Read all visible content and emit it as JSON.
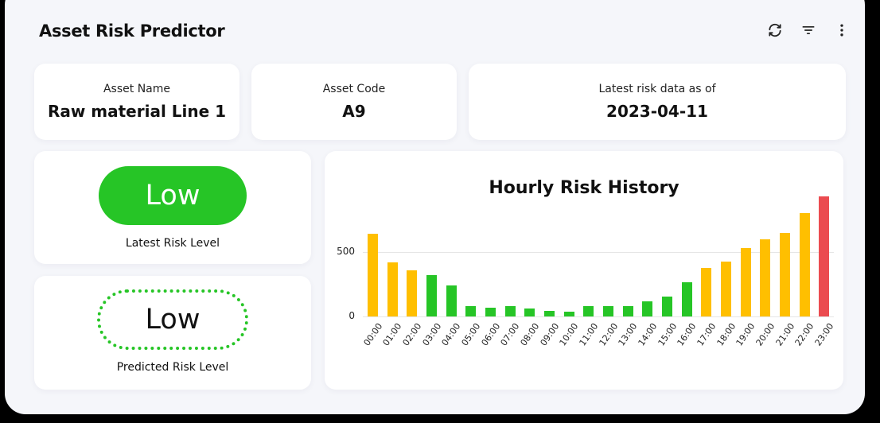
{
  "header": {
    "title": "Asset Risk Predictor",
    "actions": [
      {
        "name": "refresh-icon",
        "label": "Refresh"
      },
      {
        "name": "filter-icon",
        "label": "Filter"
      },
      {
        "name": "more-options-icon",
        "label": "More options"
      }
    ]
  },
  "info_cards": [
    {
      "label": "Asset Name",
      "value": "Raw material Line 1"
    },
    {
      "label": "Asset Code",
      "value": "A9"
    },
    {
      "label": "Latest risk data as of",
      "value": "2023-04-11"
    }
  ],
  "latest_risk": {
    "value": "Low",
    "label": "Latest Risk Level",
    "color": "#26c526"
  },
  "predicted_risk": {
    "value": "Low",
    "label": "Predicted Risk Level",
    "color": "#26c526"
  },
  "colors": {
    "low": "#26c526",
    "medium": "#ffbf00",
    "high": "#eb4b50"
  },
  "chart_data": {
    "type": "bar",
    "title": "Hourly Risk History",
    "xlabel": "",
    "ylabel": "",
    "ylim": [
      0,
      950
    ],
    "yticks": [
      0,
      500
    ],
    "grid": true,
    "legend": "none",
    "categories": [
      "00:00",
      "01:00",
      "02:00",
      "03:00",
      "04:00",
      "05:00",
      "06:00",
      "07:00",
      "08:00",
      "09:00",
      "10:00",
      "11:00",
      "12:00",
      "13:00",
      "14:00",
      "15:00",
      "16:00",
      "17:00",
      "18:00",
      "19:00",
      "20:00",
      "21:00",
      "22:00",
      "23:00"
    ],
    "values": [
      640,
      420,
      360,
      320,
      240,
      80,
      70,
      80,
      60,
      45,
      40,
      80,
      80,
      80,
      120,
      155,
      265,
      375,
      425,
      530,
      600,
      650,
      800,
      930
    ],
    "levels": [
      "medium",
      "medium",
      "medium",
      "low",
      "low",
      "low",
      "low",
      "low",
      "low",
      "low",
      "low",
      "low",
      "low",
      "low",
      "low",
      "low",
      "low",
      "medium",
      "medium",
      "medium",
      "medium",
      "medium",
      "medium",
      "high"
    ]
  }
}
